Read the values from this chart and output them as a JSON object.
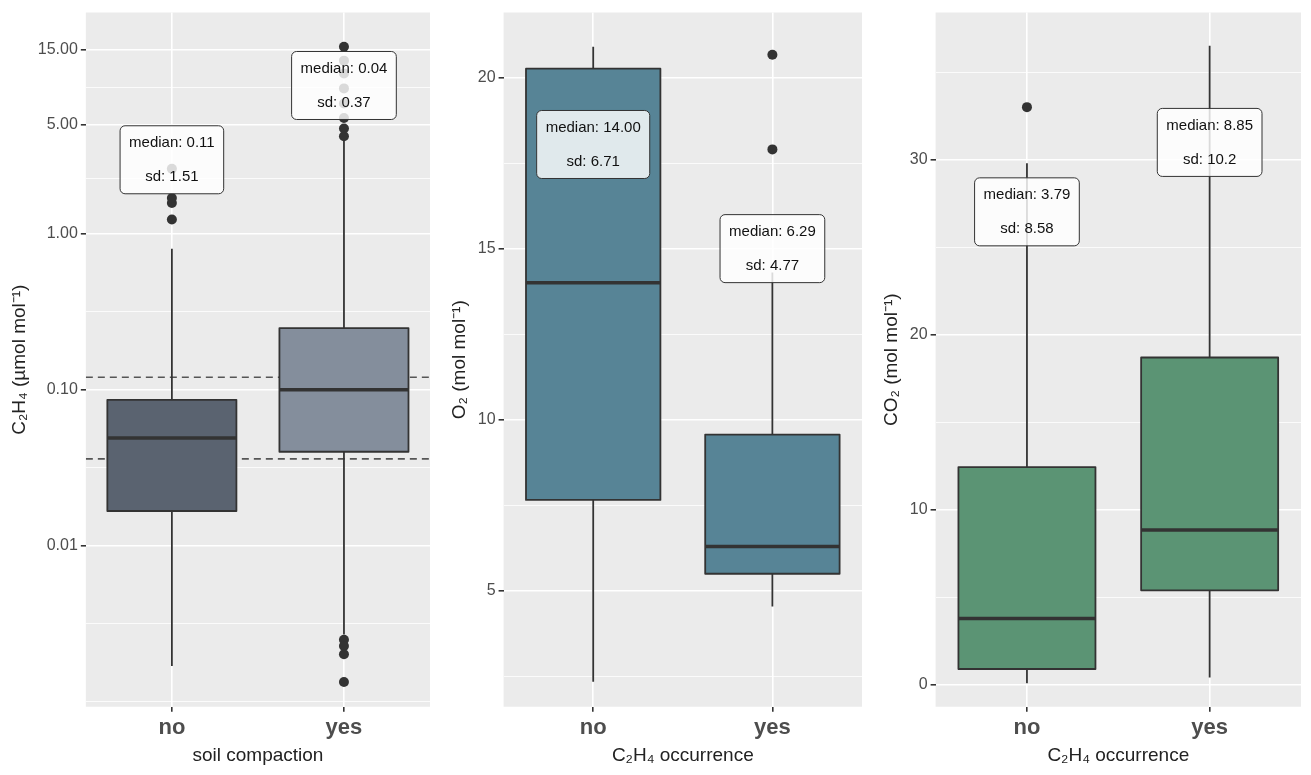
{
  "chart_data": [
    {
      "type": "box",
      "categories": [
        "no",
        "yes"
      ],
      "xlabel": "soil compaction",
      "ylabel": "C₂H₄ (µmol mol⁻¹)",
      "log": "y",
      "colors": [
        "#5a6370",
        "#848e9c"
      ],
      "boxes": [
        {
          "low": 0.0017,
          "q1": 0.0167,
          "median": 0.049,
          "q3": 0.086,
          "high": 0.8,
          "outliers": [
            1.23,
            1.57,
            1.69,
            2.6
          ]
        },
        {
          "low": 0.0027,
          "q1": 0.04,
          "median": 0.1,
          "q3": 0.248,
          "high": 4.0,
          "outliers": [
            0.0025,
            0.00228,
            0.00202,
            0.00134,
            4.2,
            4.7,
            5.5,
            6.8,
            8.5,
            10.6,
            12.8,
            15.7
          ]
        }
      ],
      "ylim": [
        0.00093,
        26
      ],
      "yticks": [
        {
          "value": 15,
          "label": "15.00"
        },
        {
          "value": 8.66,
          "label": null
        },
        {
          "value": 5,
          "label": "5.00"
        },
        {
          "value": 2.24,
          "label": null
        },
        {
          "value": 1,
          "label": "1.00"
        },
        {
          "value": 0.316,
          "label": null
        },
        {
          "value": 0.1,
          "label": "0.10"
        },
        {
          "value": 0.0316,
          "label": null
        },
        {
          "value": 0.01,
          "label": "0.01"
        },
        {
          "value": 0.00316,
          "label": null
        },
        {
          "value": 0.001,
          "label": null
        }
      ],
      "ref_lines": [
        {
          "axis": "y",
          "value": 0.12,
          "color": "#555555",
          "line_style": "dashed"
        },
        {
          "axis": "y",
          "value": 0.036,
          "color": "#555555",
          "line_style": "dashed"
        }
      ],
      "annotations": [
        "median: 0.11\nsd: 1.51",
        "median: 0.04\nsd: 0.37"
      ],
      "grid": true,
      "legend": false
    },
    {
      "type": "box",
      "categories": [
        "no",
        "yes"
      ],
      "xlabel": "C₂H₄ occurrence",
      "ylabel": "O₂ (mol mol⁻¹)",
      "colors": [
        "#578496",
        "#578496"
      ],
      "boxes": [
        {
          "low": 2.33,
          "q1": 7.65,
          "median": 14.0,
          "q3": 20.26,
          "high": 20.9
        },
        {
          "low": 4.53,
          "q1": 5.49,
          "median": 6.29,
          "q3": 9.56,
          "high": 14.3,
          "outliers": [
            17.9,
            20.67
          ]
        }
      ],
      "ylim": [
        1.6,
        21.9
      ],
      "yticks": [
        {
          "value": 2.5,
          "label": null
        },
        5,
        {
          "value": 7.5,
          "label": null
        },
        10,
        {
          "value": 12.5,
          "label": null
        },
        15,
        {
          "value": 17.5,
          "label": null
        },
        20
      ],
      "annotations": [
        "median: 14.00\nsd: 6.71",
        "median: 6.29\nsd: 4.77"
      ],
      "grid": true,
      "legend": false
    },
    {
      "type": "box",
      "categories": [
        "no",
        "yes"
      ],
      "xlabel": "C₂H₄ occurrence",
      "ylabel": "CO₂ (mol mol⁻¹)",
      "colors": [
        "#5b9474",
        "#5b9474"
      ],
      "boxes": [
        {
          "low": 0.1,
          "q1": 0.91,
          "median": 3.79,
          "q3": 12.44,
          "high": 29.8,
          "outliers": [
            33.0
          ]
        },
        {
          "low": 0.43,
          "q1": 5.4,
          "median": 8.85,
          "q3": 18.7,
          "high": 36.5
        }
      ],
      "ylim": [
        -1.25,
        38.4
      ],
      "yticks": [
        0,
        {
          "value": 5,
          "label": null
        },
        10,
        {
          "value": 15,
          "label": null
        },
        20,
        {
          "value": 25,
          "label": null
        },
        30,
        {
          "value": 35,
          "label": null
        }
      ],
      "annotations": [
        "median: 3.79\nsd: 8.58",
        "median: 8.85\nsd: 10.2"
      ],
      "grid": true,
      "legend": false
    }
  ]
}
